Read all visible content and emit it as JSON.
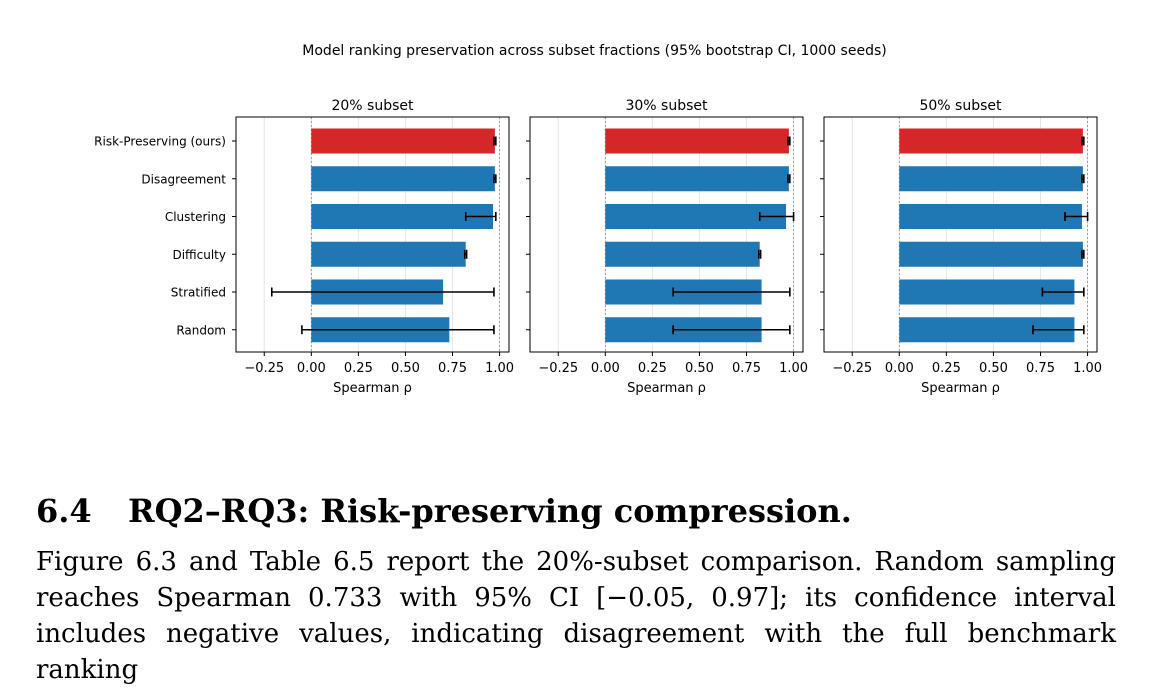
{
  "figure": {
    "suptitle": "Model ranking preservation across subset fractions (95% bootstrap CI, 1000 seeds)"
  },
  "chart_data": {
    "type": "bar",
    "orientation": "horizontal",
    "title": "Model ranking preservation across subset fractions (95% bootstrap CI, 1000 seeds)",
    "xlabel": "Spearman ρ",
    "xlim": [
      -0.4,
      1.05
    ],
    "xticks": [
      "−0.25",
      "0.00",
      "0.25",
      "0.50",
      "0.75",
      "1.00"
    ],
    "xtick_values": [
      -0.25,
      0,
      0.25,
      0.5,
      0.75,
      1.0
    ],
    "categories": [
      "Risk-Preserving (ours)",
      "Disagreement",
      "Clustering",
      "Difficulty",
      "Stratified",
      "Random"
    ],
    "colors": {
      "highlight": "#d62728",
      "default": "#1f77b4"
    },
    "grid": "x",
    "panels": [
      {
        "title": "20% subset",
        "values": [
          0.975,
          0.975,
          0.965,
          0.82,
          0.7,
          0.733
        ],
        "ci": [
          [
            0.97,
            0.98
          ],
          [
            0.97,
            0.98
          ],
          [
            0.82,
            0.98
          ],
          [
            0.815,
            0.825
          ],
          [
            -0.21,
            0.97
          ],
          [
            -0.05,
            0.97
          ]
        ]
      },
      {
        "title": "30% subset",
        "values": [
          0.975,
          0.975,
          0.96,
          0.82,
          0.83,
          0.83
        ],
        "ci": [
          [
            0.97,
            0.98
          ],
          [
            0.97,
            0.98
          ],
          [
            0.82,
            1.0
          ],
          [
            0.815,
            0.825
          ],
          [
            0.36,
            0.98
          ],
          [
            0.36,
            0.98
          ]
        ]
      },
      {
        "title": "50% subset",
        "values": [
          0.975,
          0.975,
          0.97,
          0.975,
          0.93,
          0.93
        ],
        "ci": [
          [
            0.97,
            0.98
          ],
          [
            0.97,
            0.98
          ],
          [
            0.88,
            1.0
          ],
          [
            0.97,
            0.98
          ],
          [
            0.76,
            0.98
          ],
          [
            0.71,
            0.98
          ]
        ]
      }
    ]
  },
  "section": {
    "number": "6.4",
    "title": "RQ2–RQ3: Risk-preserving compression.",
    "paragraph": "Figure 6.3 and Table 6.5 report the 20%-subset comparison. Random sampling reaches Spearman 0.733 with 95% CI [−0.05, 0.97]; its confidence interval includes negative values, indicating disagreement with the full benchmark ranking"
  }
}
